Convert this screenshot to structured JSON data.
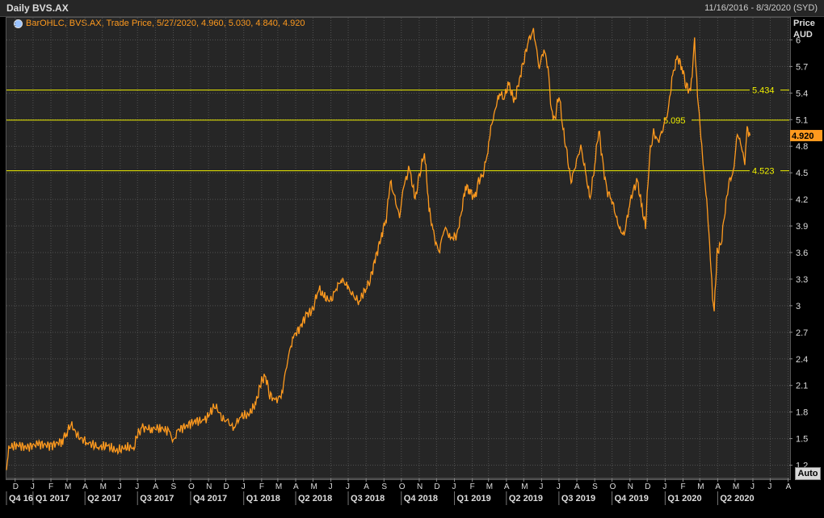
{
  "window": {
    "title": "Daily BVS.AX",
    "date_range": "11/16/2016 - 8/3/2020 (SYD)"
  },
  "legend": {
    "text": "BarOHLC, BVS.AX, Trade Price,  5/27/2020, 4.960, 5.030, 4.840, 4.920",
    "icon": "globe-icon"
  },
  "y_axis_title": {
    "line1": "Price",
    "line2": "AUD"
  },
  "auto_button": "Auto",
  "colors": {
    "price_line": "#ff9a1e",
    "level_line": "#f0f000",
    "background": "#262626",
    "grid": "#505050",
    "current_price_badge": "#ff9a1e"
  },
  "chart_data": {
    "type": "line",
    "title": "Daily BVS.AX",
    "series_name": "BarOHLC, BVS.AX, Trade Price",
    "last_ohlc": {
      "date": "5/27/2020",
      "open": 4.96,
      "high": 5.03,
      "low": 4.84,
      "close": 4.92
    },
    "current_price": 4.92,
    "current_price_label": "4.920",
    "ylim": [
      1.05,
      6.25
    ],
    "yticks": [
      1.2,
      1.5,
      1.8,
      2.1,
      2.4,
      2.7,
      3,
      3.3,
      3.6,
      3.9,
      4.2,
      4.5,
      4.8,
      5.1,
      5.4,
      5.7,
      6
    ],
    "ytick_labels": [
      "1.2",
      "1.5",
      "1.8",
      "2.1",
      "2.4",
      "2.7",
      "3",
      "3.3",
      "3.6",
      "3.9",
      "4.2",
      "4.5",
      "4.8",
      "5.1",
      "5.4",
      "5.7",
      "6"
    ],
    "xlim": [
      "2016-11-16",
      "2020-08-03"
    ],
    "month_ticks": [
      {
        "label": "D",
        "date": "2016-12-01"
      },
      {
        "label": "J",
        "date": "2017-01-01"
      },
      {
        "label": "F",
        "date": "2017-02-01"
      },
      {
        "label": "M",
        "date": "2017-03-01"
      },
      {
        "label": "A",
        "date": "2017-04-01"
      },
      {
        "label": "M",
        "date": "2017-05-01"
      },
      {
        "label": "J",
        "date": "2017-06-01"
      },
      {
        "label": "J",
        "date": "2017-07-01"
      },
      {
        "label": "A",
        "date": "2017-08-01"
      },
      {
        "label": "S",
        "date": "2017-09-01"
      },
      {
        "label": "O",
        "date": "2017-10-01"
      },
      {
        "label": "N",
        "date": "2017-11-01"
      },
      {
        "label": "D",
        "date": "2017-12-01"
      },
      {
        "label": "J",
        "date": "2018-01-01"
      },
      {
        "label": "F",
        "date": "2018-02-01"
      },
      {
        "label": "M",
        "date": "2018-03-01"
      },
      {
        "label": "A",
        "date": "2018-04-01"
      },
      {
        "label": "M",
        "date": "2018-05-01"
      },
      {
        "label": "J",
        "date": "2018-06-01"
      },
      {
        "label": "J",
        "date": "2018-07-01"
      },
      {
        "label": "A",
        "date": "2018-08-01"
      },
      {
        "label": "S",
        "date": "2018-09-01"
      },
      {
        "label": "O",
        "date": "2018-10-01"
      },
      {
        "label": "N",
        "date": "2018-11-01"
      },
      {
        "label": "D",
        "date": "2018-12-01"
      },
      {
        "label": "J",
        "date": "2019-01-01"
      },
      {
        "label": "F",
        "date": "2019-02-01"
      },
      {
        "label": "M",
        "date": "2019-03-01"
      },
      {
        "label": "A",
        "date": "2019-04-01"
      },
      {
        "label": "M",
        "date": "2019-05-01"
      },
      {
        "label": "J",
        "date": "2019-06-01"
      },
      {
        "label": "J",
        "date": "2019-07-01"
      },
      {
        "label": "A",
        "date": "2019-08-01"
      },
      {
        "label": "S",
        "date": "2019-09-01"
      },
      {
        "label": "O",
        "date": "2019-10-01"
      },
      {
        "label": "N",
        "date": "2019-11-01"
      },
      {
        "label": "D",
        "date": "2019-12-01"
      },
      {
        "label": "J",
        "date": "2020-01-01"
      },
      {
        "label": "F",
        "date": "2020-02-01"
      },
      {
        "label": "M",
        "date": "2020-03-01"
      },
      {
        "label": "A",
        "date": "2020-04-01"
      },
      {
        "label": "M",
        "date": "2020-05-01"
      },
      {
        "label": "J",
        "date": "2020-06-01"
      },
      {
        "label": "J",
        "date": "2020-07-01"
      },
      {
        "label": "A",
        "date": "2020-08-01"
      }
    ],
    "quarter_labels": [
      {
        "label": "Q4 16",
        "start": "2016-11-16",
        "end": "2017-01-01"
      },
      {
        "label": "Q1 2017",
        "start": "2017-01-01",
        "end": "2017-04-01"
      },
      {
        "label": "Q2 2017",
        "start": "2017-04-01",
        "end": "2017-07-01"
      },
      {
        "label": "Q3 2017",
        "start": "2017-07-01",
        "end": "2017-10-01"
      },
      {
        "label": "Q4 2017",
        "start": "2017-10-01",
        "end": "2018-01-01"
      },
      {
        "label": "Q1 2018",
        "start": "2018-01-01",
        "end": "2018-04-01"
      },
      {
        "label": "Q2 2018",
        "start": "2018-04-01",
        "end": "2018-07-01"
      },
      {
        "label": "Q3 2018",
        "start": "2018-07-01",
        "end": "2018-10-01"
      },
      {
        "label": "Q4 2018",
        "start": "2018-10-01",
        "end": "2019-01-01"
      },
      {
        "label": "Q1 2019",
        "start": "2019-01-01",
        "end": "2019-04-01"
      },
      {
        "label": "Q2 2019",
        "start": "2019-04-01",
        "end": "2019-07-01"
      },
      {
        "label": "Q3 2019",
        "start": "2019-07-01",
        "end": "2019-10-01"
      },
      {
        "label": "Q4 2019",
        "start": "2019-10-01",
        "end": "2020-01-01"
      },
      {
        "label": "Q1 2020",
        "start": "2020-01-01",
        "end": "2020-04-01"
      },
      {
        "label": "Q2 2020",
        "start": "2020-04-01",
        "end": "2020-07-01"
      }
    ],
    "horizontal_levels": [
      {
        "value": 5.434,
        "label": "5.434"
      },
      {
        "value": 5.095,
        "label": "5.095"
      },
      {
        "value": 4.523,
        "label": "4.523"
      }
    ],
    "points": [
      [
        "2016-11-16",
        1.12
      ],
      [
        "2016-11-20",
        1.4
      ],
      [
        "2016-12-05",
        1.43
      ],
      [
        "2016-12-20",
        1.4
      ],
      [
        "2017-01-10",
        1.44
      ],
      [
        "2017-02-01",
        1.42
      ],
      [
        "2017-02-20",
        1.47
      ],
      [
        "2017-03-01",
        1.58
      ],
      [
        "2017-03-08",
        1.66
      ],
      [
        "2017-03-20",
        1.52
      ],
      [
        "2017-04-05",
        1.46
      ],
      [
        "2017-04-25",
        1.4
      ],
      [
        "2017-05-10",
        1.42
      ],
      [
        "2017-05-25",
        1.36
      ],
      [
        "2017-06-10",
        1.4
      ],
      [
        "2017-06-25",
        1.4
      ],
      [
        "2017-07-01",
        1.55
      ],
      [
        "2017-07-10",
        1.62
      ],
      [
        "2017-07-25",
        1.61
      ],
      [
        "2017-08-10",
        1.62
      ],
      [
        "2017-08-25",
        1.58
      ],
      [
        "2017-09-01",
        1.47
      ],
      [
        "2017-09-10",
        1.6
      ],
      [
        "2017-09-25",
        1.65
      ],
      [
        "2017-10-10",
        1.7
      ],
      [
        "2017-10-25",
        1.7
      ],
      [
        "2017-11-05",
        1.8
      ],
      [
        "2017-11-12",
        1.88
      ],
      [
        "2017-11-25",
        1.73
      ],
      [
        "2017-12-05",
        1.68
      ],
      [
        "2017-12-15",
        1.62
      ],
      [
        "2017-12-25",
        1.75
      ],
      [
        "2018-01-10",
        1.77
      ],
      [
        "2018-01-22",
        1.9
      ],
      [
        "2018-02-01",
        2.16
      ],
      [
        "2018-02-08",
        2.2
      ],
      [
        "2018-02-15",
        2.0
      ],
      [
        "2018-02-25",
        1.92
      ],
      [
        "2018-03-08",
        2.0
      ],
      [
        "2018-03-18",
        2.4
      ],
      [
        "2018-03-28",
        2.65
      ],
      [
        "2018-04-08",
        2.75
      ],
      [
        "2018-04-20",
        2.9
      ],
      [
        "2018-05-01",
        2.95
      ],
      [
        "2018-05-10",
        3.2
      ],
      [
        "2018-05-20",
        3.1
      ],
      [
        "2018-06-01",
        3.05
      ],
      [
        "2018-06-10",
        3.2
      ],
      [
        "2018-06-20",
        3.3
      ],
      [
        "2018-07-01",
        3.2
      ],
      [
        "2018-07-10",
        3.1
      ],
      [
        "2018-07-20",
        3.05
      ],
      [
        "2018-08-01",
        3.2
      ],
      [
        "2018-08-08",
        3.3
      ],
      [
        "2018-08-18",
        3.55
      ],
      [
        "2018-08-28",
        3.8
      ],
      [
        "2018-09-05",
        4.0
      ],
      [
        "2018-09-12",
        4.4
      ],
      [
        "2018-09-20",
        4.2
      ],
      [
        "2018-09-28",
        4.0
      ],
      [
        "2018-10-05",
        4.35
      ],
      [
        "2018-10-15",
        4.55
      ],
      [
        "2018-10-25",
        4.2
      ],
      [
        "2018-11-01",
        4.45
      ],
      [
        "2018-11-10",
        4.75
      ],
      [
        "2018-11-18",
        4.1
      ],
      [
        "2018-11-26",
        3.8
      ],
      [
        "2018-12-05",
        3.6
      ],
      [
        "2018-12-15",
        3.9
      ],
      [
        "2018-12-25",
        3.75
      ],
      [
        "2019-01-05",
        3.8
      ],
      [
        "2019-01-12",
        4.0
      ],
      [
        "2019-01-20",
        4.35
      ],
      [
        "2019-01-28",
        4.3
      ],
      [
        "2019-02-05",
        4.2
      ],
      [
        "2019-02-12",
        4.4
      ],
      [
        "2019-02-20",
        4.5
      ],
      [
        "2019-02-28",
        4.75
      ],
      [
        "2019-03-05",
        5.0
      ],
      [
        "2019-03-12",
        5.2
      ],
      [
        "2019-03-20",
        5.4
      ],
      [
        "2019-03-28",
        5.35
      ],
      [
        "2019-04-05",
        5.5
      ],
      [
        "2019-04-15",
        5.3
      ],
      [
        "2019-04-25",
        5.6
      ],
      [
        "2019-05-02",
        5.8
      ],
      [
        "2019-05-10",
        6.0
      ],
      [
        "2019-05-18",
        6.1
      ],
      [
        "2019-05-28",
        5.7
      ],
      [
        "2019-06-05",
        5.9
      ],
      [
        "2019-06-12",
        5.7
      ],
      [
        "2019-06-18",
        5.2
      ],
      [
        "2019-06-24",
        5.1
      ],
      [
        "2019-07-01",
        5.4
      ],
      [
        "2019-07-08",
        5.0
      ],
      [
        "2019-07-15",
        4.7
      ],
      [
        "2019-07-22",
        4.4
      ],
      [
        "2019-07-30",
        4.6
      ],
      [
        "2019-08-08",
        4.8
      ],
      [
        "2019-08-16",
        4.5
      ],
      [
        "2019-08-24",
        4.2
      ],
      [
        "2019-09-01",
        4.6
      ],
      [
        "2019-09-08",
        5.0
      ],
      [
        "2019-09-15",
        4.6
      ],
      [
        "2019-09-22",
        4.3
      ],
      [
        "2019-10-01",
        4.2
      ],
      [
        "2019-10-08",
        4.0
      ],
      [
        "2019-10-15",
        3.85
      ],
      [
        "2019-10-22",
        3.8
      ],
      [
        "2019-10-30",
        4.1
      ],
      [
        "2019-11-06",
        4.3
      ],
      [
        "2019-11-14",
        4.4
      ],
      [
        "2019-11-22",
        4.1
      ],
      [
        "2019-11-28",
        3.9
      ],
      [
        "2019-12-05",
        4.7
      ],
      [
        "2019-12-12",
        4.95
      ],
      [
        "2019-12-20",
        4.85
      ],
      [
        "2019-12-28",
        5.0
      ],
      [
        "2020-01-06",
        5.2
      ],
      [
        "2020-01-14",
        5.6
      ],
      [
        "2020-01-22",
        5.8
      ],
      [
        "2020-01-30",
        5.7
      ],
      [
        "2020-02-06",
        5.5
      ],
      [
        "2020-02-14",
        5.4
      ],
      [
        "2020-02-21",
        5.98
      ],
      [
        "2020-02-26",
        5.4
      ],
      [
        "2020-03-03",
        4.9
      ],
      [
        "2020-03-08",
        4.5
      ],
      [
        "2020-03-13",
        4.2
      ],
      [
        "2020-03-18",
        3.7
      ],
      [
        "2020-03-23",
        3.1
      ],
      [
        "2020-03-26",
        2.95
      ],
      [
        "2020-03-31",
        3.6
      ],
      [
        "2020-04-07",
        3.7
      ],
      [
        "2020-04-14",
        4.1
      ],
      [
        "2020-04-21",
        4.4
      ],
      [
        "2020-04-28",
        4.5
      ],
      [
        "2020-05-05",
        4.95
      ],
      [
        "2020-05-12",
        4.8
      ],
      [
        "2020-05-18",
        4.6
      ],
      [
        "2020-05-22",
        5.0
      ],
      [
        "2020-05-27",
        4.92
      ]
    ]
  }
}
